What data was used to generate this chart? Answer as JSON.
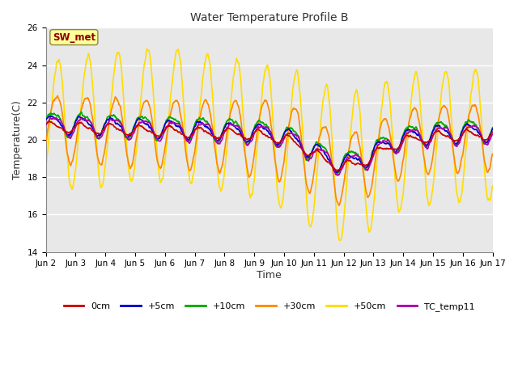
{
  "title": "Water Temperature Profile B",
  "xlabel": "Time",
  "ylabel": "Temperature(C)",
  "ylim": [
    14,
    26
  ],
  "yticks": [
    14,
    16,
    18,
    20,
    22,
    24,
    26
  ],
  "background_color": "#e8e8e8",
  "fig_background": "#ffffff",
  "annotation_text": "SW_met",
  "annotation_color": "#8b0000",
  "annotation_bg": "#ffff99",
  "series_colors": {
    "0cm": "#cc0000",
    "+5cm": "#0000cc",
    "+10cm": "#00aa00",
    "+30cm": "#ff8800",
    "+50cm": "#ffdd00",
    "TC_temp11": "#aa00aa"
  },
  "xtick_labels": [
    "Jun 2",
    "Jun 3",
    "Jun 4",
    "Jun 5",
    "Jun 6",
    "Jun 7",
    "Jun 8",
    "Jun 9",
    "Jun 10",
    "Jun 11",
    "Jun 12",
    "Jun 13",
    "Jun 14",
    "Jun 15",
    "Jun 16",
    "Jun 17"
  ],
  "num_points": 1500,
  "date_range_days": 15
}
